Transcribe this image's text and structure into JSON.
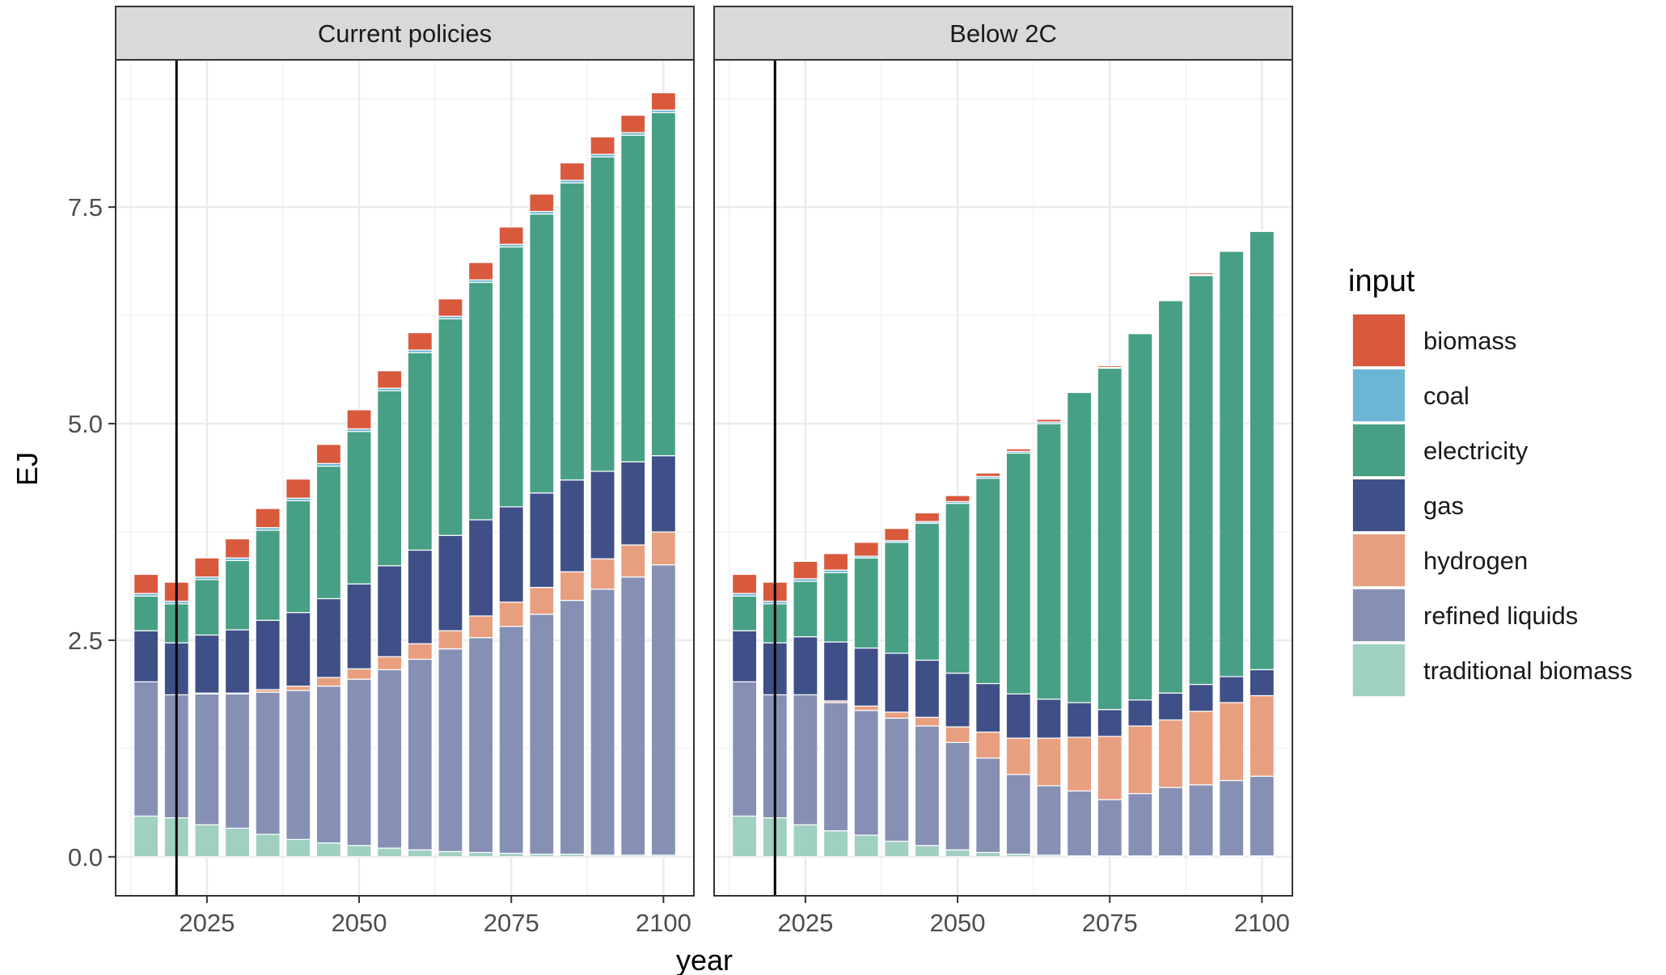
{
  "chart_data": {
    "type": "bar",
    "stacked": true,
    "xlabel": "year",
    "ylabel": "EJ",
    "x": [
      2015,
      2020,
      2025,
      2030,
      2035,
      2040,
      2045,
      2050,
      2055,
      2060,
      2065,
      2070,
      2075,
      2080,
      2085,
      2090,
      2095,
      2100
    ],
    "x_ticks": [
      2025,
      2050,
      2075,
      2100
    ],
    "xlim": [
      2010,
      2105
    ],
    "y_ticks": [
      0.0,
      2.5,
      5.0,
      7.5
    ],
    "y_tick_labels": [
      "0.0",
      "2.5",
      "5.0",
      "7.5"
    ],
    "ylim": [
      -0.45,
      9.2
    ],
    "grid": true,
    "vline_x": 2020,
    "legend": {
      "title": "input",
      "position": "right",
      "entries": [
        {
          "name": "biomass",
          "color": "#d9593d"
        },
        {
          "name": "coal",
          "color": "#6bb6d4"
        },
        {
          "name": "electricity",
          "color": "#47a085"
        },
        {
          "name": "gas",
          "color": "#3f5088"
        },
        {
          "name": "hydrogen",
          "color": "#e89f80"
        },
        {
          "name": "refined liquids",
          "color": "#8690b4"
        },
        {
          "name": "traditional biomass",
          "color": "#a0d0c2"
        }
      ]
    },
    "stack_order": [
      "traditional biomass",
      "refined liquids",
      "hydrogen",
      "gas",
      "electricity",
      "coal",
      "biomass"
    ],
    "panels": [
      {
        "title": "Current policies",
        "series": [
          {
            "name": "traditional biomass",
            "values": [
              0.47,
              0.45,
              0.37,
              0.33,
              0.26,
              0.2,
              0.16,
              0.13,
              0.1,
              0.08,
              0.06,
              0.05,
              0.04,
              0.03,
              0.03,
              0.02,
              0.02,
              0.02
            ]
          },
          {
            "name": "refined liquids",
            "values": [
              1.55,
              1.42,
              1.51,
              1.55,
              1.64,
              1.72,
              1.81,
              1.92,
              2.06,
              2.2,
              2.34,
              2.48,
              2.62,
              2.77,
              2.93,
              3.07,
              3.21,
              3.35
            ]
          },
          {
            "name": "hydrogen",
            "values": [
              0.0,
              0.0,
              0.01,
              0.01,
              0.03,
              0.05,
              0.1,
              0.12,
              0.15,
              0.18,
              0.21,
              0.25,
              0.28,
              0.31,
              0.33,
              0.35,
              0.37,
              0.38
            ]
          },
          {
            "name": "gas",
            "values": [
              0.59,
              0.6,
              0.67,
              0.73,
              0.8,
              0.85,
              0.91,
              0.98,
              1.05,
              1.08,
              1.1,
              1.11,
              1.1,
              1.09,
              1.06,
              1.01,
              0.96,
              0.88
            ]
          },
          {
            "name": "electricity",
            "values": [
              0.4,
              0.45,
              0.64,
              0.8,
              1.04,
              1.29,
              1.53,
              1.76,
              2.02,
              2.28,
              2.5,
              2.74,
              3.0,
              3.22,
              3.43,
              3.63,
              3.77,
              3.96
            ]
          },
          {
            "name": "coal",
            "values": [
              0.03,
              0.03,
              0.03,
              0.03,
              0.03,
              0.03,
              0.03,
              0.03,
              0.03,
              0.03,
              0.03,
              0.03,
              0.03,
              0.03,
              0.03,
              0.03,
              0.03,
              0.03
            ]
          },
          {
            "name": "biomass",
            "values": [
              0.22,
              0.22,
              0.22,
              0.22,
              0.22,
              0.22,
              0.22,
              0.22,
              0.2,
              0.2,
              0.2,
              0.2,
              0.2,
              0.2,
              0.2,
              0.2,
              0.2,
              0.2
            ]
          }
        ]
      },
      {
        "title": "Below 2C",
        "series": [
          {
            "name": "traditional biomass",
            "values": [
              0.47,
              0.45,
              0.37,
              0.3,
              0.25,
              0.18,
              0.13,
              0.08,
              0.05,
              0.03,
              0.02,
              0.01,
              0.01,
              0.01,
              0.01,
              0.01,
              0.01,
              0.01
            ]
          },
          {
            "name": "refined liquids",
            "values": [
              1.55,
              1.42,
              1.5,
              1.48,
              1.44,
              1.42,
              1.38,
              1.24,
              1.09,
              0.92,
              0.8,
              0.75,
              0.65,
              0.72,
              0.79,
              0.82,
              0.87,
              0.92
            ]
          },
          {
            "name": "hydrogen",
            "values": [
              0.0,
              0.0,
              0.0,
              0.02,
              0.05,
              0.07,
              0.1,
              0.18,
              0.3,
              0.42,
              0.55,
              0.62,
              0.73,
              0.78,
              0.78,
              0.85,
              0.9,
              0.93
            ]
          },
          {
            "name": "gas",
            "values": [
              0.59,
              0.6,
              0.67,
              0.68,
              0.67,
              0.68,
              0.66,
              0.62,
              0.56,
              0.51,
              0.45,
              0.4,
              0.31,
              0.3,
              0.31,
              0.31,
              0.3,
              0.3
            ]
          },
          {
            "name": "electricity",
            "values": [
              0.4,
              0.45,
              0.64,
              0.8,
              1.04,
              1.28,
              1.58,
              1.96,
              2.37,
              2.78,
              3.18,
              3.58,
              3.94,
              4.23,
              4.53,
              4.72,
              4.91,
              5.06
            ]
          },
          {
            "name": "coal",
            "values": [
              0.03,
              0.03,
              0.03,
              0.03,
              0.02,
              0.02,
              0.02,
              0.02,
              0.02,
              0.02,
              0.02,
              0.01,
              0.01,
              0.01,
              0.01,
              0.01,
              0.01,
              0.01
            ]
          },
          {
            "name": "biomass",
            "values": [
              0.22,
              0.22,
              0.2,
              0.19,
              0.16,
              0.14,
              0.1,
              0.07,
              0.04,
              0.03,
              0.03,
              0.0,
              0.02,
              0.0,
              0.0,
              0.02,
              0.0,
              0.0
            ]
          }
        ]
      }
    ]
  }
}
